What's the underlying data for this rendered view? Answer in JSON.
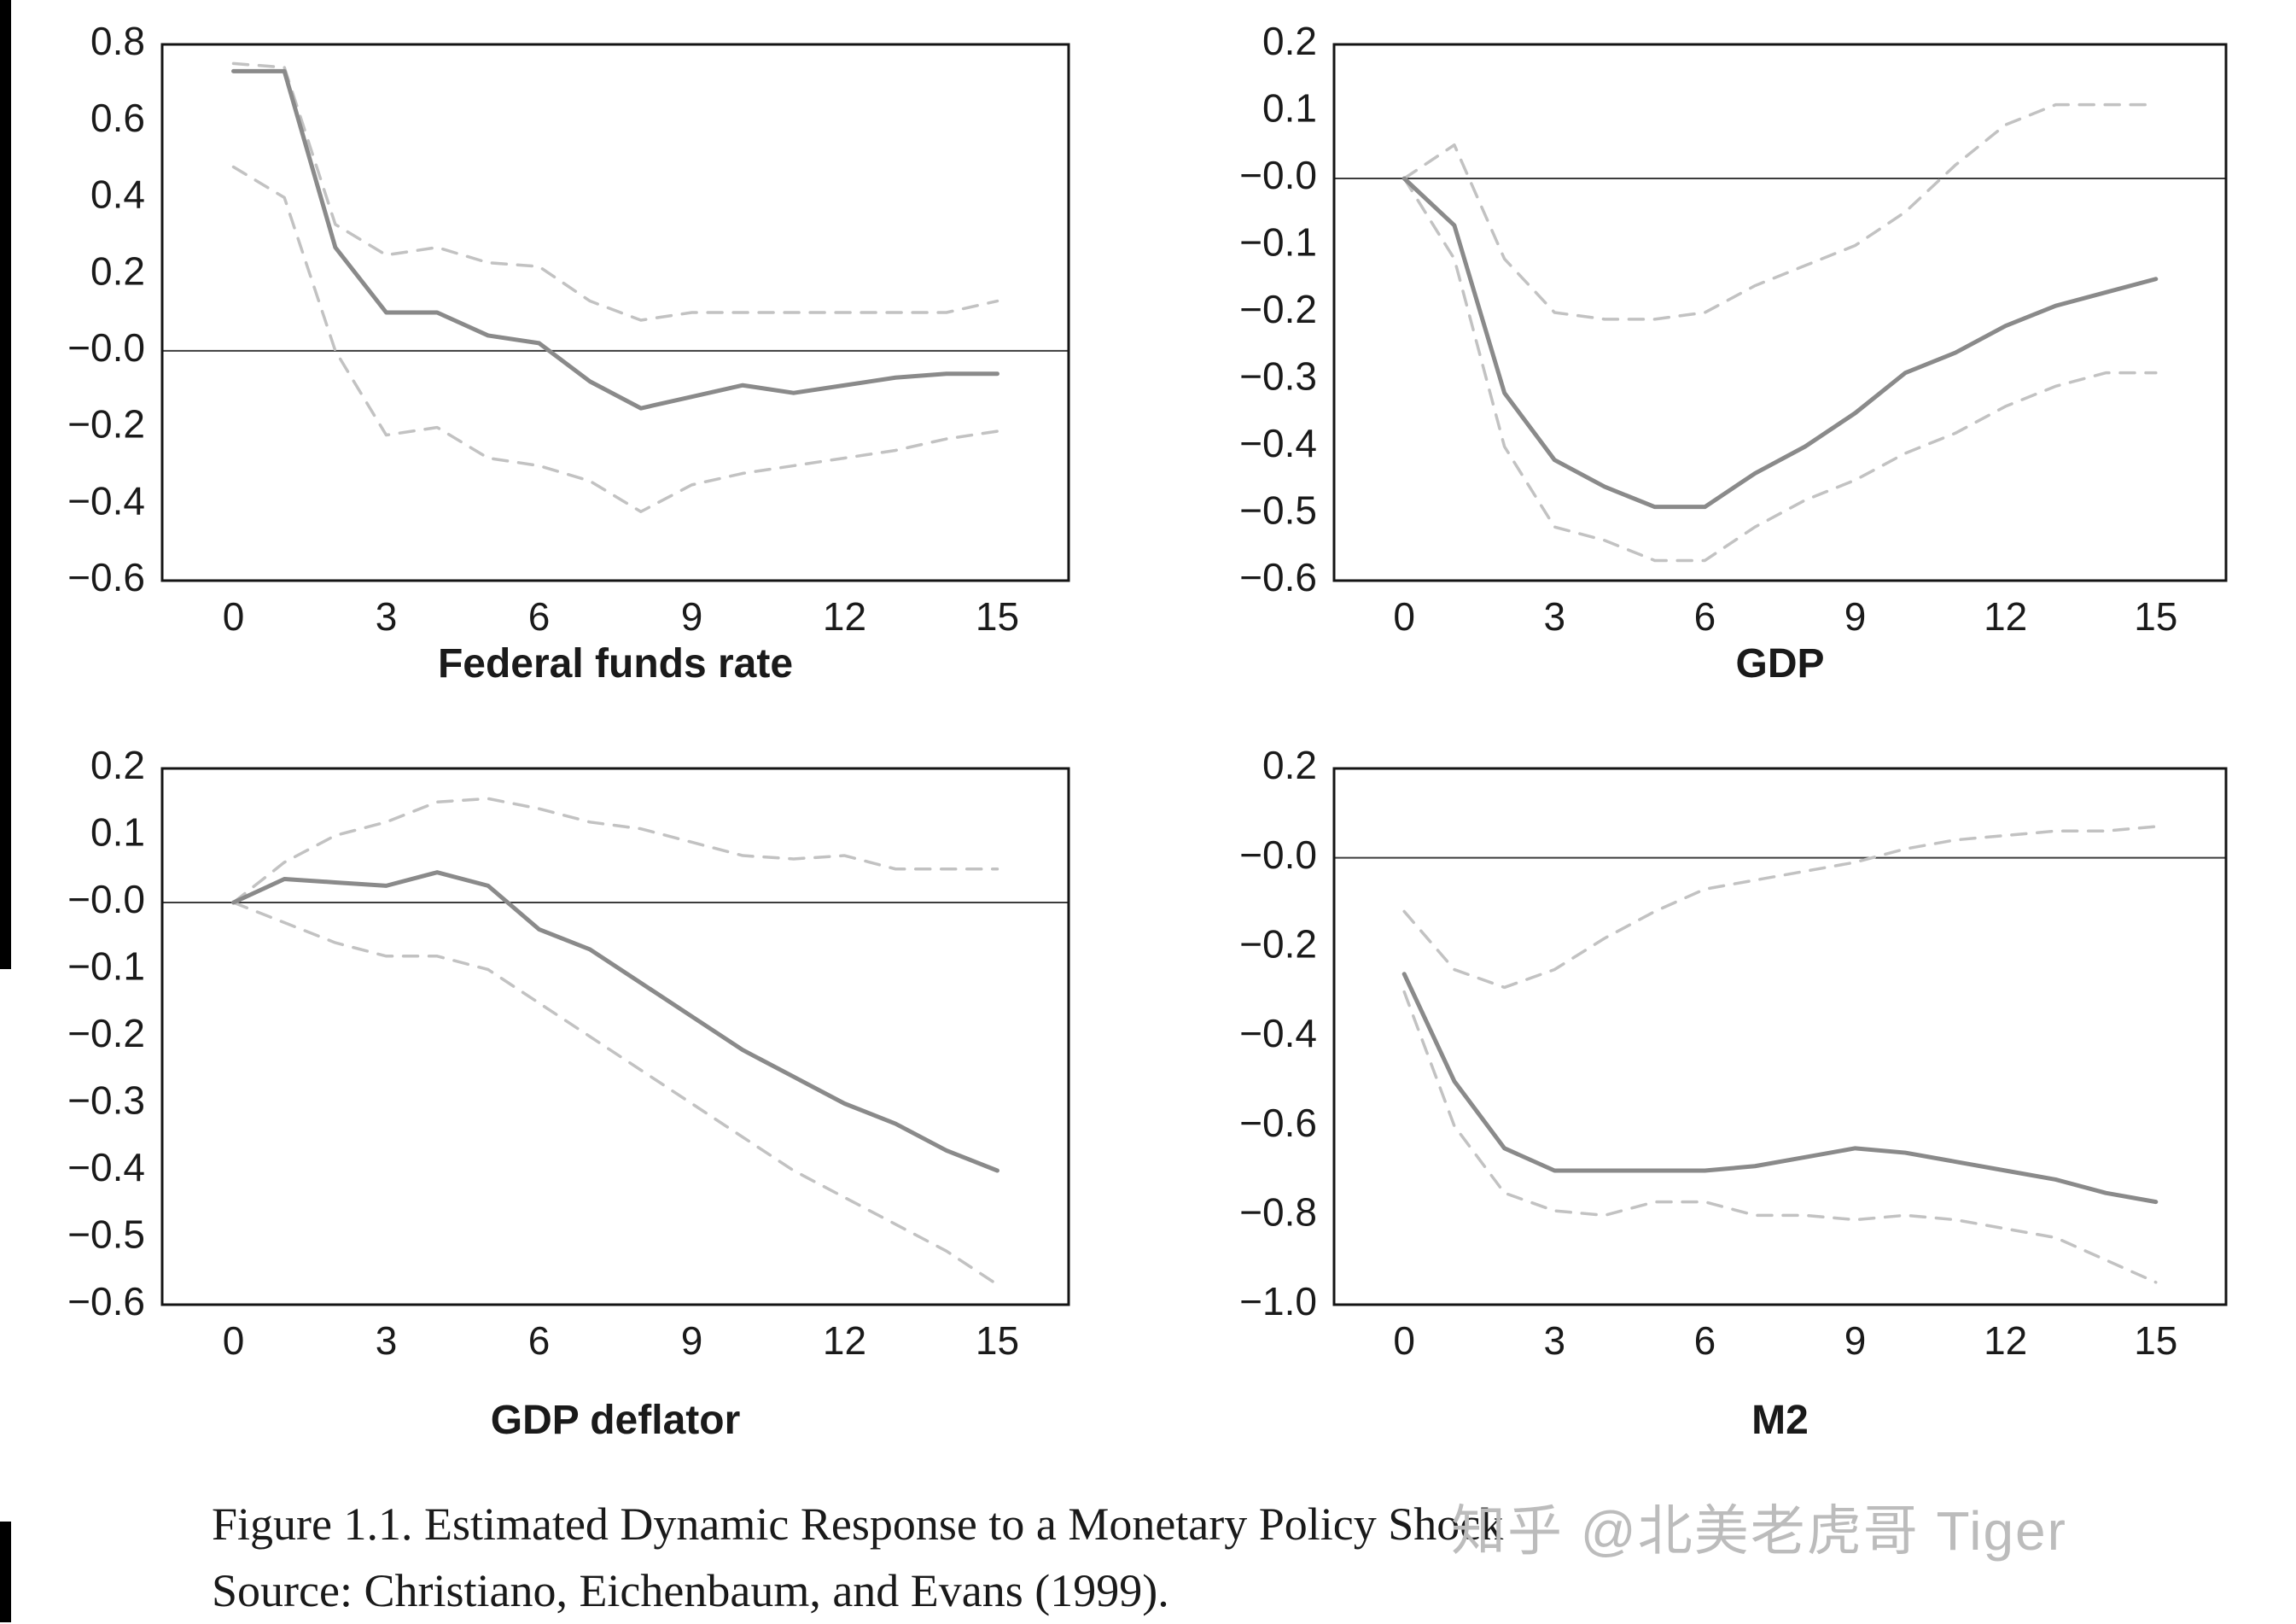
{
  "figure": {
    "caption_line1": "Figure 1.1.  Estimated Dynamic Response to a Monetary Policy Shock",
    "caption_line2": "Source: Christiano, Eichenbaum, and Evans (1999).",
    "watermark": "知乎 @北美老虎哥 Tiger"
  },
  "styles": {
    "solid_line_color": "#8a8a8a",
    "dashed_line_color": "#c2c2c2",
    "box_color": "#141414",
    "zero_line_color": "#3c3c3c",
    "text_color": "#1a1a1a",
    "watermark_color": "#bcbcbc"
  },
  "chart_data": [
    {
      "id": "ffr",
      "type": "line",
      "title": "Federal funds rate",
      "x": [
        0,
        1,
        2,
        3,
        4,
        5,
        6,
        7,
        8,
        9,
        10,
        11,
        12,
        13,
        14,
        15
      ],
      "xlim": [
        -1.4,
        16.4
      ],
      "ylim": [
        -0.6,
        0.8
      ],
      "xticks": [
        "0",
        "3",
        "6",
        "9",
        "12",
        "15"
      ],
      "xtick_values": [
        0,
        3,
        6,
        9,
        12,
        15
      ],
      "yticks": [
        {
          "label": "0.8",
          "value": 0.8
        },
        {
          "label": "0.6",
          "value": 0.6
        },
        {
          "label": "0.4",
          "value": 0.4
        },
        {
          "label": "0.2",
          "value": 0.2
        },
        {
          "label": "−0.0",
          "value": 0.0
        },
        {
          "label": "−0.2",
          "value": -0.2
        },
        {
          "label": "−0.4",
          "value": -0.4
        },
        {
          "label": "−0.6",
          "value": -0.6
        }
      ],
      "zero_line": true,
      "legend": "none",
      "grid": false,
      "series": [
        {
          "name": "point estimate",
          "style": "solid",
          "values": [
            0.73,
            0.73,
            0.27,
            0.1,
            0.1,
            0.04,
            0.02,
            -0.08,
            -0.15,
            -0.12,
            -0.09,
            -0.11,
            -0.09,
            -0.07,
            -0.06,
            -0.06
          ]
        },
        {
          "name": "upper confidence band",
          "style": "dashed",
          "values": [
            0.75,
            0.74,
            0.33,
            0.25,
            0.27,
            0.23,
            0.22,
            0.13,
            0.08,
            0.1,
            0.1,
            0.1,
            0.1,
            0.1,
            0.1,
            0.13
          ]
        },
        {
          "name": "lower confidence band",
          "style": "dashed",
          "values": [
            0.48,
            0.4,
            0.0,
            -0.22,
            -0.2,
            -0.28,
            -0.3,
            -0.34,
            -0.42,
            -0.35,
            -0.32,
            -0.3,
            -0.28,
            -0.26,
            -0.23,
            -0.21
          ]
        }
      ]
    },
    {
      "id": "gdp",
      "type": "line",
      "title": "GDP",
      "x": [
        0,
        1,
        2,
        3,
        4,
        5,
        6,
        7,
        8,
        9,
        10,
        11,
        12,
        13,
        14,
        15
      ],
      "xlim": [
        -1.4,
        16.4
      ],
      "ylim": [
        -0.6,
        0.2
      ],
      "xticks": [
        "0",
        "3",
        "6",
        "9",
        "12",
        "15"
      ],
      "xtick_values": [
        0,
        3,
        6,
        9,
        12,
        15
      ],
      "yticks": [
        {
          "label": "0.2",
          "value": 0.2
        },
        {
          "label": "0.1",
          "value": 0.1
        },
        {
          "label": "−0.0",
          "value": 0.0
        },
        {
          "label": "−0.1",
          "value": -0.1
        },
        {
          "label": "−0.2",
          "value": -0.2
        },
        {
          "label": "−0.3",
          "value": -0.3
        },
        {
          "label": "−0.4",
          "value": -0.4
        },
        {
          "label": "−0.5",
          "value": -0.5
        },
        {
          "label": "−0.6",
          "value": -0.6
        }
      ],
      "zero_line": true,
      "legend": "none",
      "grid": false,
      "series": [
        {
          "name": "point estimate",
          "style": "solid",
          "values": [
            0.0,
            -0.07,
            -0.32,
            -0.42,
            -0.46,
            -0.49,
            -0.49,
            -0.44,
            -0.4,
            -0.35,
            -0.29,
            -0.26,
            -0.22,
            -0.19,
            -0.17,
            -0.15
          ]
        },
        {
          "name": "upper confidence band",
          "style": "dashed",
          "values": [
            0.0,
            0.05,
            -0.12,
            -0.2,
            -0.21,
            -0.21,
            -0.2,
            -0.16,
            -0.13,
            -0.1,
            -0.05,
            0.02,
            0.08,
            0.11,
            0.11,
            0.11
          ]
        },
        {
          "name": "lower confidence band",
          "style": "dashed",
          "values": [
            0.0,
            -0.12,
            -0.4,
            -0.52,
            -0.54,
            -0.57,
            -0.57,
            -0.52,
            -0.48,
            -0.45,
            -0.41,
            -0.38,
            -0.34,
            -0.31,
            -0.29,
            -0.29
          ]
        }
      ]
    },
    {
      "id": "deflator",
      "type": "line",
      "title": "GDP deflator",
      "x": [
        0,
        1,
        2,
        3,
        4,
        5,
        6,
        7,
        8,
        9,
        10,
        11,
        12,
        13,
        14,
        15
      ],
      "xlim": [
        -1.4,
        16.4
      ],
      "ylim": [
        -0.6,
        0.2
      ],
      "xticks": [
        "0",
        "3",
        "6",
        "9",
        "12",
        "15"
      ],
      "xtick_values": [
        0,
        3,
        6,
        9,
        12,
        15
      ],
      "yticks": [
        {
          "label": "0.2",
          "value": 0.2
        },
        {
          "label": "0.1",
          "value": 0.1
        },
        {
          "label": "−0.0",
          "value": 0.0
        },
        {
          "label": "−0.1",
          "value": -0.1
        },
        {
          "label": "−0.2",
          "value": -0.2
        },
        {
          "label": "−0.3",
          "value": -0.3
        },
        {
          "label": "−0.4",
          "value": -0.4
        },
        {
          "label": "−0.5",
          "value": -0.5
        },
        {
          "label": "−0.6",
          "value": -0.6
        }
      ],
      "zero_line": true,
      "legend": "none",
      "grid": false,
      "series": [
        {
          "name": "point estimate",
          "style": "solid",
          "values": [
            0.0,
            0.035,
            0.03,
            0.025,
            0.045,
            0.025,
            -0.04,
            -0.07,
            -0.12,
            -0.17,
            -0.22,
            -0.26,
            -0.3,
            -0.33,
            -0.37,
            -0.4
          ]
        },
        {
          "name": "upper confidence band",
          "style": "dashed",
          "values": [
            0.0,
            0.06,
            0.1,
            0.12,
            0.15,
            0.155,
            0.14,
            0.12,
            0.11,
            0.09,
            0.07,
            0.065,
            0.07,
            0.05,
            0.05,
            0.05
          ]
        },
        {
          "name": "lower confidence band",
          "style": "dashed",
          "values": [
            0.0,
            -0.03,
            -0.06,
            -0.08,
            -0.08,
            -0.1,
            -0.15,
            -0.2,
            -0.25,
            -0.3,
            -0.35,
            -0.4,
            -0.44,
            -0.48,
            -0.52,
            -0.57
          ]
        }
      ]
    },
    {
      "id": "m2",
      "type": "line",
      "title": "M2",
      "x": [
        0,
        1,
        2,
        3,
        4,
        5,
        6,
        7,
        8,
        9,
        10,
        11,
        12,
        13,
        14,
        15
      ],
      "xlim": [
        -1.4,
        16.4
      ],
      "ylim": [
        -1.0,
        0.2
      ],
      "xticks": [
        "0",
        "3",
        "6",
        "9",
        "12",
        "15"
      ],
      "xtick_values": [
        0,
        3,
        6,
        9,
        12,
        15
      ],
      "yticks": [
        {
          "label": "0.2",
          "value": 0.2
        },
        {
          "label": "−0.0",
          "value": 0.0
        },
        {
          "label": "−0.2",
          "value": -0.2
        },
        {
          "label": "−0.4",
          "value": -0.4
        },
        {
          "label": "−0.6",
          "value": -0.6
        },
        {
          "label": "−0.8",
          "value": -0.8
        },
        {
          "label": "−1.0",
          "value": -1.0
        }
      ],
      "zero_line": true,
      "legend": "none",
      "grid": false,
      "series": [
        {
          "name": "point estimate",
          "style": "solid",
          "values": [
            -0.26,
            -0.5,
            -0.65,
            -0.7,
            -0.7,
            -0.7,
            -0.7,
            -0.69,
            -0.67,
            -0.65,
            -0.66,
            -0.68,
            -0.7,
            -0.72,
            -0.75,
            -0.77
          ]
        },
        {
          "name": "upper confidence band",
          "style": "dashed",
          "values": [
            -0.12,
            -0.25,
            -0.29,
            -0.25,
            -0.18,
            -0.12,
            -0.07,
            -0.05,
            -0.03,
            -0.01,
            0.02,
            0.04,
            0.05,
            0.06,
            0.06,
            0.07
          ]
        },
        {
          "name": "lower confidence band",
          "style": "dashed",
          "values": [
            -0.3,
            -0.6,
            -0.75,
            -0.79,
            -0.8,
            -0.77,
            -0.77,
            -0.8,
            -0.8,
            -0.81,
            -0.8,
            -0.81,
            -0.83,
            -0.85,
            -0.9,
            -0.95
          ]
        }
      ]
    }
  ]
}
